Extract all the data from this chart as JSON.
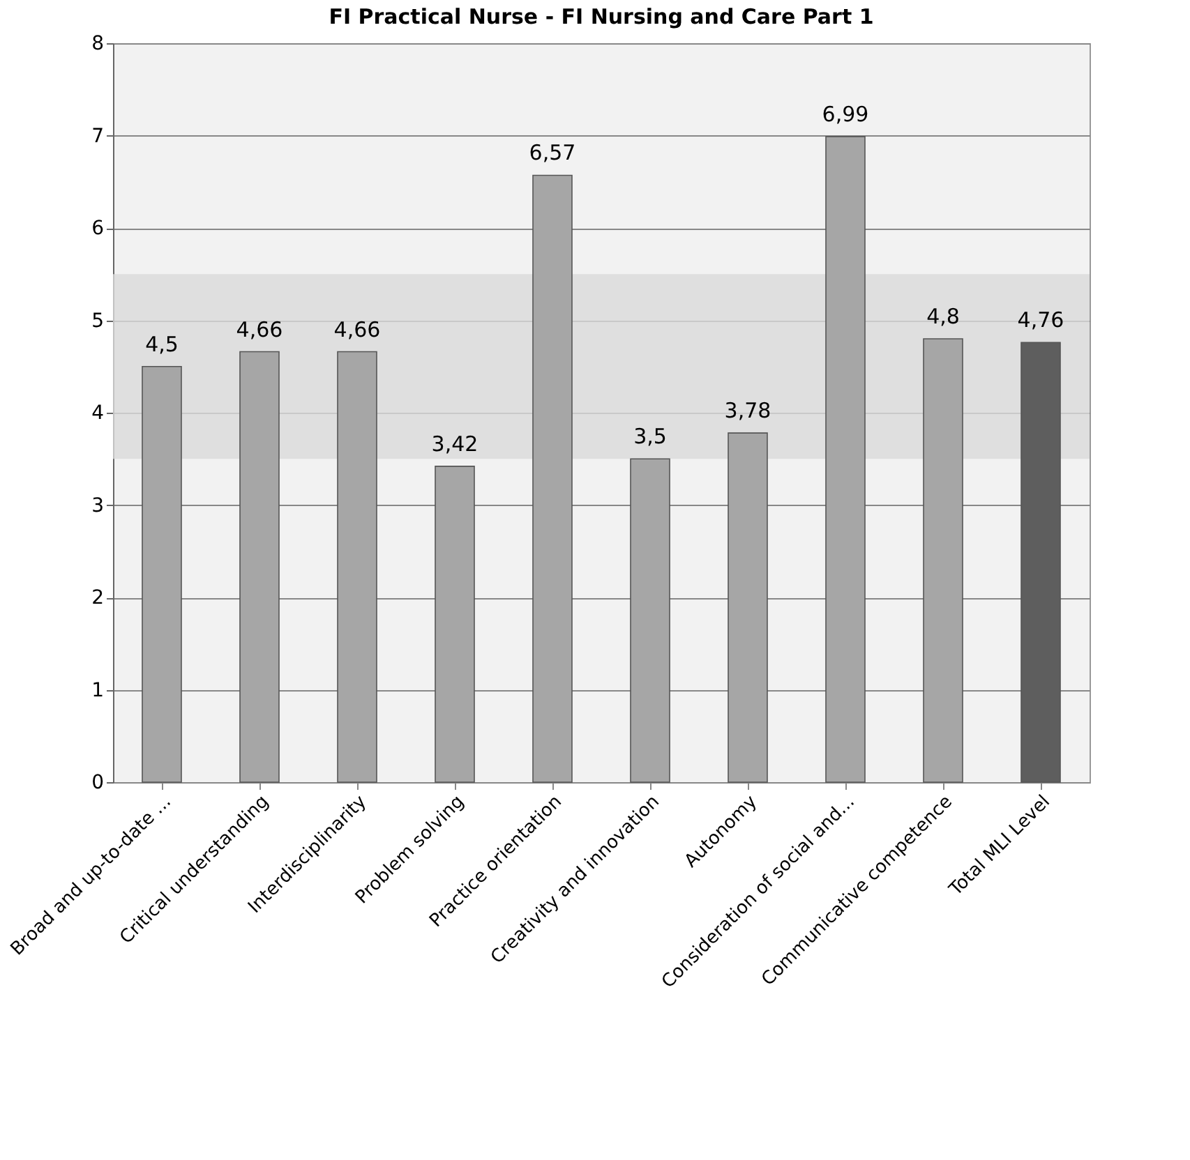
{
  "chart_data": {
    "type": "bar",
    "title": "FI Practical Nurse - FI Nursing and Care Part 1",
    "categories": [
      "Broad and up-to-date ...",
      "Critical understanding",
      "Interdisciplinarity",
      "Problem solving",
      "Practice orientation",
      "Creativity and innovation",
      "Autonomy",
      "Consideration of social and...",
      "Communicative competence",
      "Total MLI Level"
    ],
    "values": [
      4.5,
      4.66,
      4.66,
      3.42,
      6.57,
      3.5,
      3.78,
      6.99,
      4.8,
      4.76
    ],
    "colors": [
      "#a6a6a6",
      "#a6a6a6",
      "#a6a6a6",
      "#a6a6a6",
      "#a6a6a6",
      "#a6a6a6",
      "#a6a6a6",
      "#a6a6a6",
      "#a6a6a6",
      "#5e5e5e"
    ],
    "value_labels": [
      "4,5",
      "4,66",
      "4,66",
      "3,42",
      "6,57",
      "3,5",
      "3,78",
      "6,99",
      "4,8",
      "4,76"
    ],
    "ylim": [
      0,
      8
    ],
    "yticks": [
      0,
      1,
      2,
      3,
      4,
      5,
      6,
      7,
      8
    ],
    "grid": "y",
    "bands": [
      {
        "axis": "y",
        "from": 3.5,
        "to": 5.5,
        "color": "#d9d9d9"
      }
    ]
  }
}
